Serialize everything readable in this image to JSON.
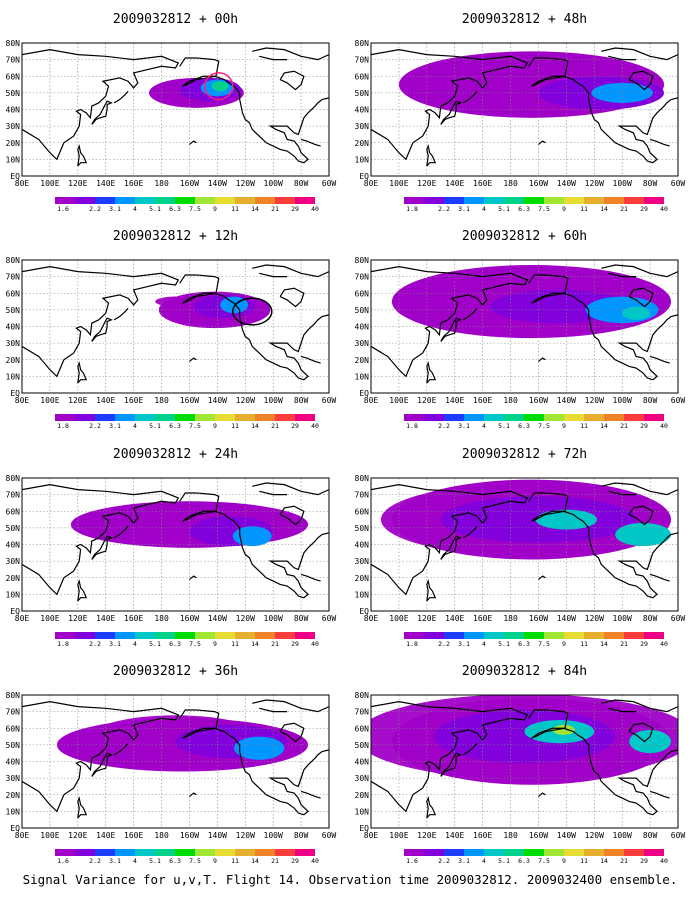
{
  "caption": "Signal Variance for u,v,T. Flight 14. Observation time 2009032812. 2009032400 ensemble.",
  "x_tick_labels": [
    "80E",
    "100E",
    "120E",
    "140E",
    "160E",
    "180",
    "160W",
    "140W",
    "120W",
    "100W",
    "80W",
    "60W"
  ],
  "y_tick_labels": [
    "80N",
    "70N",
    "60N",
    "50N",
    "40N",
    "30N",
    "20N",
    "10N",
    "EQ"
  ],
  "colorbar": {
    "labels": [
      "1.8",
      "2.2",
      "3.1",
      "4",
      "5.1",
      "6.3",
      "7.5",
      "9",
      "11",
      "14",
      "21",
      "29",
      "40"
    ],
    "colors": [
      "#a000c8",
      "#8200dc",
      "#1e3cff",
      "#0096ff",
      "#00c8c8",
      "#00d28c",
      "#00dc00",
      "#a0e632",
      "#e6dc32",
      "#e6af2d",
      "#f08228",
      "#fa3c3c",
      "#f00082"
    ]
  },
  "panels": [
    {
      "id": "p00",
      "title": "2009032812 + 00h",
      "col": 0,
      "row": 0,
      "spread": 0.0,
      "alt_label": "1.6",
      "blobs": [
        {
          "lon": 205,
          "lat": 50,
          "rx": 34,
          "ry": 9,
          "lvl": 0
        },
        {
          "lon": 215,
          "lat": 52,
          "rx": 22,
          "ry": 7,
          "lvl": 1
        },
        {
          "lon": 220,
          "lat": 53,
          "rx": 12,
          "ry": 5,
          "lvl": 3
        },
        {
          "lon": 222,
          "lat": 54,
          "rx": 6,
          "ry": 3,
          "lvl": 5
        }
      ],
      "ring": {
        "lon": 221,
        "lat": 54,
        "rx": 5,
        "ry": 8,
        "color": "#ff2080"
      }
    },
    {
      "id": "p12",
      "title": "2009032812 + 12h",
      "col": 0,
      "row": 1,
      "spread": 0.12,
      "alt_label": "1.8",
      "blobs": [
        {
          "lon": 218,
          "lat": 50,
          "rx": 40,
          "ry": 11,
          "lvl": 0
        },
        {
          "lon": 225,
          "lat": 52,
          "rx": 22,
          "ry": 7,
          "lvl": 1
        },
        {
          "lon": 232,
          "lat": 53,
          "rx": 10,
          "ry": 5,
          "lvl": 3
        }
      ],
      "ring": {
        "lon": 245,
        "lat": 49,
        "rx": 7,
        "ry": 8,
        "color": "#000000"
      }
    },
    {
      "id": "p24",
      "title": "2009032812 + 24h",
      "col": 0,
      "row": 2,
      "spread": 0.35,
      "alt_label": "1.8",
      "blobs": [
        {
          "lon": 200,
          "lat": 52,
          "rx": 85,
          "ry": 14,
          "lvl": 0
        },
        {
          "lon": 230,
          "lat": 48,
          "rx": 30,
          "ry": 9,
          "lvl": 1
        },
        {
          "lon": 245,
          "lat": 45,
          "rx": 14,
          "ry": 6,
          "lvl": 3
        }
      ]
    },
    {
      "id": "p36",
      "title": "2009032812 + 36h",
      "col": 0,
      "row": 3,
      "spread": 0.5,
      "alt_label": "1.6",
      "blobs": [
        {
          "lon": 195,
          "lat": 50,
          "rx": 90,
          "ry": 16,
          "lvl": 0
        },
        {
          "lon": 230,
          "lat": 52,
          "rx": 40,
          "ry": 10,
          "lvl": 1
        },
        {
          "lon": 250,
          "lat": 48,
          "rx": 18,
          "ry": 7,
          "lvl": 3
        }
      ]
    },
    {
      "id": "p48",
      "title": "2009032812 + 48h",
      "col": 1,
      "row": 0,
      "spread": 0.6,
      "alt_label": "1.8",
      "blobs": [
        {
          "lon": 195,
          "lat": 55,
          "rx": 95,
          "ry": 20,
          "lvl": 0
        },
        {
          "lon": 245,
          "lat": 50,
          "rx": 45,
          "ry": 10,
          "lvl": 1
        },
        {
          "lon": 260,
          "lat": 50,
          "rx": 22,
          "ry": 6,
          "lvl": 3
        }
      ]
    },
    {
      "id": "p60",
      "title": "2009032812 + 60h",
      "col": 1,
      "row": 1,
      "spread": 0.75,
      "alt_label": "1.8",
      "blobs": [
        {
          "lon": 195,
          "lat": 55,
          "rx": 100,
          "ry": 22,
          "lvl": 0
        },
        {
          "lon": 215,
          "lat": 52,
          "rx": 50,
          "ry": 10,
          "lvl": 1
        },
        {
          "lon": 260,
          "lat": 50,
          "rx": 26,
          "ry": 8,
          "lvl": 3
        },
        {
          "lon": 270,
          "lat": 48,
          "rx": 10,
          "ry": 4,
          "lvl": 4
        }
      ]
    },
    {
      "id": "p72",
      "title": "2009032812 + 72h",
      "col": 1,
      "row": 2,
      "spread": 0.85,
      "alt_label": "1.8",
      "blobs": [
        {
          "lon": 195,
          "lat": 55,
          "rx": 100,
          "ry": 24,
          "lvl": 0
        },
        {
          "lon": 200,
          "lat": 55,
          "rx": 70,
          "ry": 14,
          "lvl": 1
        },
        {
          "lon": 220,
          "lat": 55,
          "rx": 22,
          "ry": 6,
          "lvl": 4
        },
        {
          "lon": 275,
          "lat": 46,
          "rx": 20,
          "ry": 7,
          "lvl": 4
        }
      ]
    },
    {
      "id": "p84",
      "title": "2009032812 + 84h",
      "col": 1,
      "row": 3,
      "spread": 1.0,
      "alt_label": "1.6",
      "blobs": [
        {
          "lon": 195,
          "lat": 52,
          "rx": 100,
          "ry": 26,
          "lvl": 0
        },
        {
          "lon": 190,
          "lat": 55,
          "rx": 65,
          "ry": 16,
          "lvl": 1
        },
        {
          "lon": 215,
          "lat": 58,
          "rx": 25,
          "ry": 7,
          "lvl": 4
        },
        {
          "lon": 218,
          "lat": 59,
          "rx": 8,
          "ry": 3,
          "lvl": 7
        },
        {
          "lon": 280,
          "lat": 52,
          "rx": 15,
          "ry": 7,
          "lvl": 4
        }
      ]
    }
  ]
}
